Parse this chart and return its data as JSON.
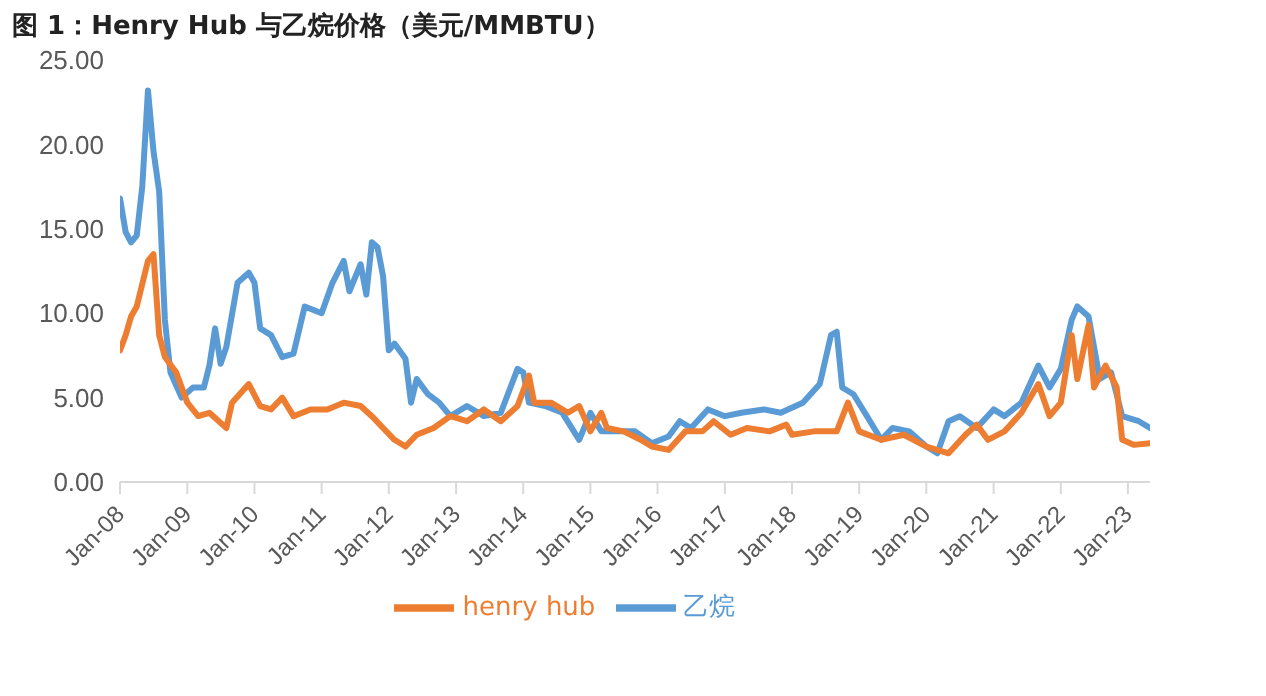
{
  "chart_data": {
    "type": "line",
    "title": "图 1：Henry Hub 与乙烷价格（美元/MMBTU）",
    "xlim": [
      "2008-01",
      "2023-05"
    ],
    "xticks": [
      {
        "value": "2008-01",
        "label": "Jan-08"
      },
      {
        "value": "2009-01",
        "label": "Jan-09"
      },
      {
        "value": "2010-01",
        "label": "Jan-10"
      },
      {
        "value": "2011-01",
        "label": "Jan-11"
      },
      {
        "value": "2012-01",
        "label": "Jan-12"
      },
      {
        "value": "2013-01",
        "label": "Jan-13"
      },
      {
        "value": "2014-01",
        "label": "Jan-14"
      },
      {
        "value": "2015-01",
        "label": "Jan-15"
      },
      {
        "value": "2016-01",
        "label": "Jan-16"
      },
      {
        "value": "2017-01",
        "label": "Jan-17"
      },
      {
        "value": "2018-01",
        "label": "Jan-18"
      },
      {
        "value": "2019-01",
        "label": "Jan-19"
      },
      {
        "value": "2020-01",
        "label": "Jan-20"
      },
      {
        "value": "2021-01",
        "label": "Jan-21"
      },
      {
        "value": "2022-01",
        "label": "Jan-22"
      },
      {
        "value": "2023-01",
        "label": "Jan-23"
      }
    ],
    "ylim": [
      0,
      25
    ],
    "yticks": [
      {
        "value": 0,
        "label": "0.00"
      },
      {
        "value": 5,
        "label": "5.00"
      },
      {
        "value": 10,
        "label": "10.00"
      },
      {
        "value": 15,
        "label": "15.00"
      },
      {
        "value": 20,
        "label": "20.00"
      },
      {
        "value": 25,
        "label": "25.00"
      }
    ],
    "grid": false,
    "legend": "bottom",
    "marker": "none",
    "line_style": "solid",
    "series": [
      {
        "name": "乙烷",
        "color": "#5b9bd5",
        "x": [
          "2008-01",
          "2008-02",
          "2008-03",
          "2008-04",
          "2008-05",
          "2008-06",
          "2008-07",
          "2008-08",
          "2008-09",
          "2008-10",
          "2008-12",
          "2009-02",
          "2009-04",
          "2009-05",
          "2009-06",
          "2009-07",
          "2009-08",
          "2009-10",
          "2009-12",
          "2010-01",
          "2010-02",
          "2010-04",
          "2010-06",
          "2010-08",
          "2010-10",
          "2011-01",
          "2011-03",
          "2011-05",
          "2011-06",
          "2011-08",
          "2011-09",
          "2011-10",
          "2011-11",
          "2011-12",
          "2012-01",
          "2012-02",
          "2012-04",
          "2012-05",
          "2012-06",
          "2012-08",
          "2012-10",
          "2012-12",
          "2013-03",
          "2013-06",
          "2013-09",
          "2013-12",
          "2014-01",
          "2014-02",
          "2014-05",
          "2014-08",
          "2014-11",
          "2015-01",
          "2015-03",
          "2015-06",
          "2015-09",
          "2015-12",
          "2016-03",
          "2016-05",
          "2016-07",
          "2016-10",
          "2017-01",
          "2017-04",
          "2017-08",
          "2017-11",
          "2018-03",
          "2018-06",
          "2018-08",
          "2018-09",
          "2018-10",
          "2018-12",
          "2019-02",
          "2019-05",
          "2019-07",
          "2019-10",
          "2020-01",
          "2020-03",
          "2020-05",
          "2020-07",
          "2020-10",
          "2021-01",
          "2021-03",
          "2021-06",
          "2021-09",
          "2021-11",
          "2022-01",
          "2022-03",
          "2022-04",
          "2022-06",
          "2022-08",
          "2022-10",
          "2022-12",
          "2023-03",
          "2023-05"
        ],
        "values": [
          16.8,
          14.8,
          14.2,
          14.6,
          17.5,
          23.2,
          19.6,
          17.2,
          9.6,
          6.5,
          5.0,
          5.6,
          5.6,
          6.9,
          9.1,
          7.0,
          8.0,
          11.8,
          12.4,
          11.8,
          9.1,
          8.7,
          7.4,
          7.6,
          10.4,
          10.0,
          11.8,
          13.1,
          11.3,
          12.9,
          11.1,
          14.2,
          13.9,
          12.2,
          7.8,
          8.2,
          7.3,
          4.7,
          6.1,
          5.2,
          4.7,
          3.9,
          4.5,
          3.9,
          4.1,
          6.7,
          6.5,
          4.7,
          4.5,
          4.1,
          2.5,
          4.1,
          3.0,
          3.0,
          3.0,
          2.3,
          2.7,
          3.6,
          3.2,
          4.3,
          3.9,
          4.1,
          4.3,
          4.1,
          4.7,
          5.8,
          8.7,
          8.9,
          5.6,
          5.2,
          4.1,
          2.5,
          3.2,
          3.0,
          2.1,
          1.7,
          3.6,
          3.9,
          3.2,
          4.3,
          3.9,
          4.7,
          6.9,
          5.6,
          6.7,
          9.6,
          10.4,
          9.8,
          6.1,
          6.5,
          3.9,
          3.6,
          3.2
        ]
      },
      {
        "name": "henry hub",
        "color": "#ed7d31",
        "x": [
          "2008-01",
          "2008-02",
          "2008-03",
          "2008-04",
          "2008-06",
          "2008-07",
          "2008-08",
          "2008-09",
          "2008-11",
          "2009-01",
          "2009-03",
          "2009-05",
          "2009-08",
          "2009-09",
          "2009-12",
          "2010-02",
          "2010-04",
          "2010-06",
          "2010-08",
          "2010-11",
          "2011-02",
          "2011-05",
          "2011-08",
          "2011-10",
          "2011-12",
          "2012-02",
          "2012-04",
          "2012-06",
          "2012-09",
          "2012-12",
          "2013-03",
          "2013-06",
          "2013-09",
          "2013-12",
          "2014-02",
          "2014-03",
          "2014-06",
          "2014-09",
          "2014-11",
          "2015-01",
          "2015-03",
          "2015-04",
          "2015-07",
          "2015-10",
          "2015-12",
          "2016-03",
          "2016-06",
          "2016-09",
          "2016-11",
          "2017-02",
          "2017-05",
          "2017-09",
          "2017-12",
          "2018-01",
          "2018-05",
          "2018-09",
          "2018-11",
          "2019-01",
          "2019-05",
          "2019-09",
          "2020-01",
          "2020-05",
          "2020-08",
          "2020-10",
          "2020-12",
          "2021-03",
          "2021-06",
          "2021-09",
          "2021-11",
          "2022-01",
          "2022-03",
          "2022-04",
          "2022-06",
          "2022-07",
          "2022-09",
          "2022-11",
          "2022-12",
          "2023-02",
          "2023-05"
        ],
        "values": [
          7.8,
          8.7,
          9.8,
          10.4,
          13.1,
          13.5,
          8.7,
          7.4,
          6.5,
          4.7,
          3.9,
          4.1,
          3.2,
          4.7,
          5.8,
          4.5,
          4.3,
          5.0,
          3.9,
          4.3,
          4.3,
          4.7,
          4.5,
          3.9,
          3.2,
          2.5,
          2.1,
          2.8,
          3.2,
          3.9,
          3.6,
          4.3,
          3.6,
          4.5,
          6.3,
          4.7,
          4.7,
          4.1,
          4.5,
          3.0,
          4.1,
          3.2,
          3.0,
          2.5,
          2.1,
          1.9,
          3.0,
          3.0,
          3.6,
          2.8,
          3.2,
          3.0,
          3.4,
          2.8,
          3.0,
          3.0,
          4.7,
          3.0,
          2.5,
          2.8,
          2.1,
          1.7,
          2.8,
          3.4,
          2.5,
          3.0,
          4.1,
          5.8,
          3.9,
          4.7,
          8.7,
          6.1,
          9.3,
          5.6,
          6.9,
          5.6,
          2.5,
          2.2,
          2.3
        ]
      }
    ]
  }
}
